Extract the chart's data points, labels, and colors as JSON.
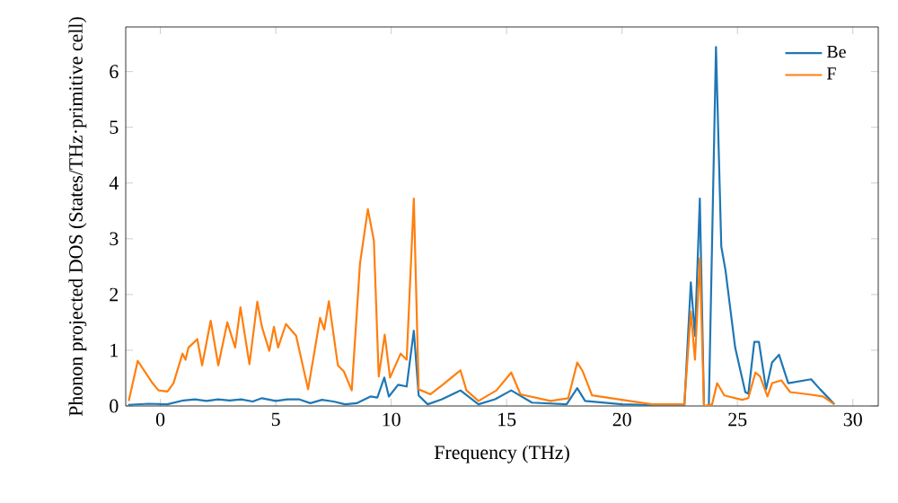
{
  "chart_data": {
    "type": "line",
    "xlabel": "Frequency (THz)",
    "ylabel": "Phonon projected DOS (States/THz·primitive cell)",
    "xlim": [
      -1.5,
      31.1
    ],
    "ylim": [
      0,
      6.8
    ],
    "xticks": [
      0,
      5,
      10,
      15,
      20,
      25,
      30
    ],
    "yticks": [
      0,
      1,
      2,
      3,
      4,
      5,
      6
    ],
    "legend": "top right",
    "grid": false,
    "series": [
      {
        "name": "Be",
        "color": "#1f77b4",
        "x": [
          -1.4,
          -0.5,
          0.3,
          1.0,
          1.5,
          2.0,
          2.5,
          3.0,
          3.5,
          4.0,
          4.4,
          5.0,
          5.5,
          6.0,
          6.5,
          7.0,
          7.5,
          8.0,
          8.5,
          9.1,
          9.4,
          9.7,
          9.9,
          10.3,
          10.67,
          10.98,
          11.19,
          11.58,
          12.2,
          13.0,
          13.78,
          14.5,
          15.2,
          16.1,
          17.6,
          18.06,
          18.4,
          20.0,
          22.7,
          22.98,
          23.16,
          23.37,
          23.55,
          23.76,
          24.07,
          24.3,
          24.48,
          24.9,
          25.34,
          25.47,
          25.73,
          25.93,
          26.24,
          26.5,
          26.8,
          27.2,
          28.19,
          28.58,
          29.2
        ],
        "values": [
          0.02,
          0.04,
          0.03,
          0.1,
          0.12,
          0.09,
          0.12,
          0.1,
          0.12,
          0.08,
          0.14,
          0.09,
          0.12,
          0.12,
          0.05,
          0.11,
          0.08,
          0.03,
          0.05,
          0.17,
          0.15,
          0.51,
          0.17,
          0.38,
          0.35,
          1.35,
          0.19,
          0.03,
          0.12,
          0.28,
          0.03,
          0.12,
          0.28,
          0.06,
          0.03,
          0.32,
          0.09,
          0.03,
          0.0,
          2.22,
          1.26,
          3.72,
          0.0,
          0.0,
          6.44,
          2.86,
          2.44,
          1.05,
          0.25,
          0.22,
          1.15,
          1.15,
          0.3,
          0.78,
          0.92,
          0.41,
          0.48,
          0.3,
          0.03
        ]
      },
      {
        "name": "F",
        "color": "#ff7f0e",
        "x": [
          -1.37,
          -0.98,
          -0.34,
          -0.08,
          0.31,
          0.57,
          0.96,
          1.09,
          1.22,
          1.48,
          1.6,
          1.81,
          2.18,
          2.51,
          2.9,
          3.24,
          3.47,
          3.86,
          4.2,
          4.4,
          4.72,
          4.92,
          5.1,
          5.44,
          5.88,
          6.4,
          6.92,
          7.1,
          7.3,
          7.69,
          7.95,
          8.29,
          8.65,
          8.99,
          9.25,
          9.46,
          9.72,
          9.95,
          10.41,
          10.67,
          10.98,
          11.19,
          11.7,
          12.23,
          13.0,
          13.26,
          13.78,
          14.56,
          15.2,
          15.6,
          16.9,
          17.67,
          18.06,
          18.3,
          18.7,
          20.0,
          21.3,
          22.7,
          22.98,
          23.16,
          23.37,
          23.55,
          23.9,
          24.12,
          24.43,
          25.2,
          25.47,
          25.78,
          25.98,
          26.3,
          26.5,
          26.9,
          27.28,
          28.06,
          28.7,
          29.2
        ],
        "values": [
          0.09,
          0.81,
          0.41,
          0.28,
          0.26,
          0.41,
          0.94,
          0.83,
          1.05,
          1.15,
          1.2,
          0.73,
          1.53,
          0.73,
          1.5,
          1.05,
          1.77,
          0.75,
          1.87,
          1.42,
          0.99,
          1.42,
          1.05,
          1.47,
          1.26,
          0.3,
          1.58,
          1.37,
          1.88,
          0.73,
          0.62,
          0.28,
          2.56,
          3.53,
          2.97,
          0.53,
          1.28,
          0.51,
          0.94,
          0.83,
          3.72,
          0.3,
          0.21,
          0.38,
          0.64,
          0.28,
          0.09,
          0.28,
          0.6,
          0.21,
          0.09,
          0.14,
          0.78,
          0.62,
          0.19,
          0.11,
          0.03,
          0.03,
          1.69,
          0.83,
          2.65,
          0.0,
          0.03,
          0.41,
          0.19,
          0.11,
          0.14,
          0.6,
          0.53,
          0.17,
          0.41,
          0.46,
          0.25,
          0.21,
          0.17,
          0.03
        ]
      }
    ]
  }
}
